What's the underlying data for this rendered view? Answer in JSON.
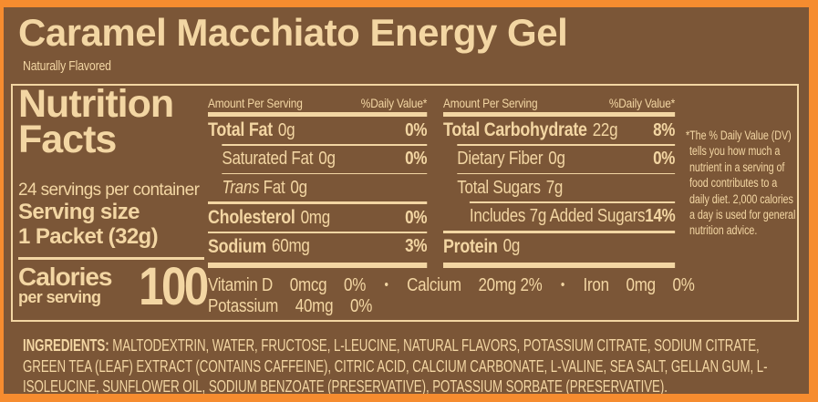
{
  "header": {
    "title": "Caramel Macchiato Energy Gel",
    "subtitle": "Naturally Flavored"
  },
  "nutrition": {
    "title_line1": "Nutrition",
    "title_line2": "Facts",
    "servings_per_container": "24 servings per container",
    "serving_size_label": "Serving size",
    "serving_size_value": "1 Packet (32g)",
    "calories_label": "Calories",
    "calories_sublabel": "per serving",
    "calories_value": "100",
    "amount_header": "Amount Per Serving",
    "dv_header": "%Daily Value*",
    "fat_col": {
      "rows": [
        {
          "label": "Total Fat",
          "amount": "0g",
          "dv": "0%"
        },
        {
          "label": "Saturated Fat",
          "amount": "0g",
          "dv": "0%"
        },
        {
          "label_italic": "Trans",
          "label": "Fat",
          "amount": "0g",
          "dv": ""
        },
        {
          "label": "Cholesterol",
          "amount": "0mg",
          "dv": "0%"
        },
        {
          "label": "Sodium",
          "amount": "60mg",
          "dv": "3%"
        }
      ]
    },
    "carb_col": {
      "rows": [
        {
          "label": "Total Carbohydrate",
          "amount": "22g",
          "dv": "8%"
        },
        {
          "label": "Dietary Fiber",
          "amount": "0g",
          "dv": "0%"
        },
        {
          "label": "Total Sugars",
          "amount": "7g",
          "dv": ""
        },
        {
          "label": "Includes 7g Added Sugars",
          "amount": "",
          "dv": "14%"
        },
        {
          "label": "Protein",
          "amount": "0g",
          "dv": ""
        }
      ]
    },
    "bullet": "•",
    "micronutrients_line1": [
      {
        "name": "Vitamin D",
        "amount": "0mcg",
        "dv": "0%"
      },
      {
        "name": "Calcium",
        "amount": "20mg",
        "dv": "2%"
      },
      {
        "name": "Iron",
        "amount": "0mg",
        "dv": "0%"
      }
    ],
    "micronutrients_line2": [
      {
        "name": "Potassium",
        "amount": "40mg",
        "dv": "0%"
      }
    ],
    "footnote": "*The % Daily Value (DV) tells you how much a nutrient in a serving of food contributes to a daily diet. 2,000 calories a day is used for general nutrition advice."
  },
  "ingredients": {
    "label": "INGREDIENTS:",
    "text": "MALTODEXTRIN, WATER, FRUCTOSE, L-LEUCINE, NATURAL FLAVORS, POTASSIUM CITRATE, SODIUM CITRATE, GREEN TEA (LEAF) EXTRACT (CONTAINS CAFFEINE), CITRIC ACID, CALCIUM CARBONATE, L-VALINE, SEA SALT, GELLAN GUM, L-ISOLEUCINE, SUNFLOWER OIL, SODIUM BENZOATE (PRESERVATIVE), POTASSIUM SORBATE (PRESERVATIVE)."
  },
  "colors": {
    "background": "#7B5637",
    "border": "#F68C2F",
    "text": "#F3D6A3"
  }
}
